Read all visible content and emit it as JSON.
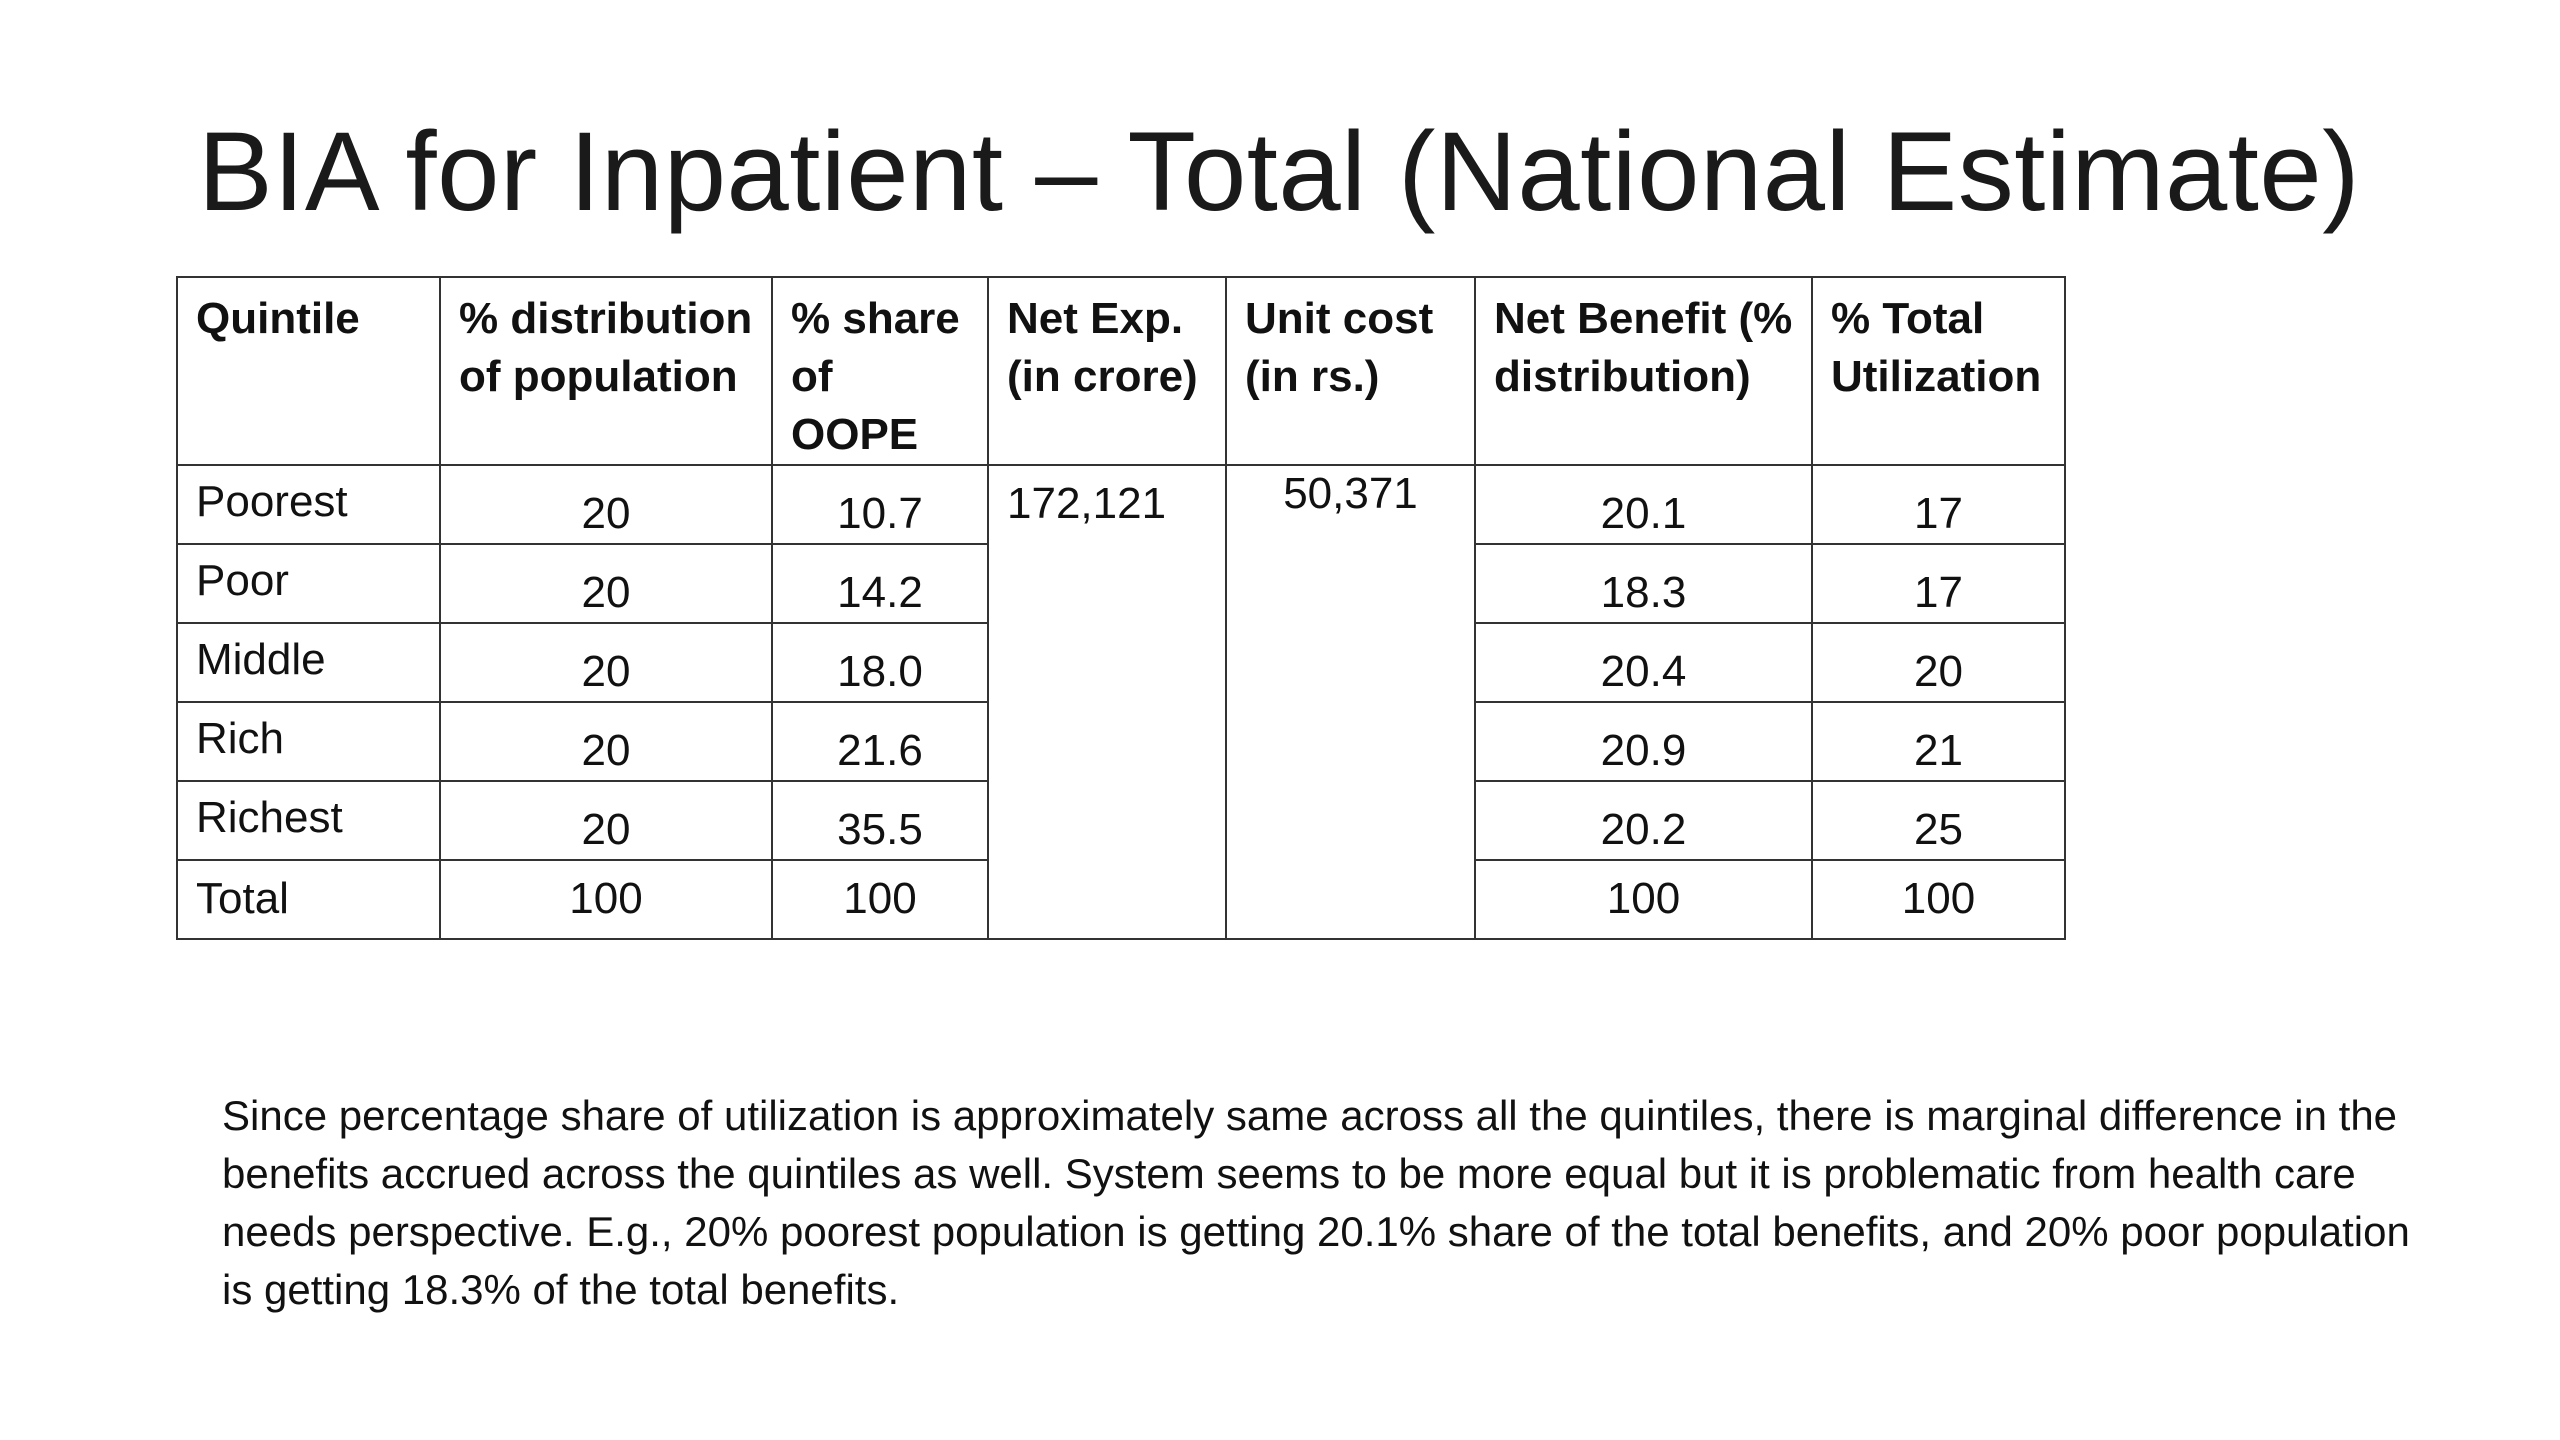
{
  "slide": {
    "title": "BIA for Inpatient – Total (National Estimate)"
  },
  "table": {
    "headers": [
      "Quintile",
      "% distribution of population",
      "% share of OOPE",
      "Net Exp. (in crore)",
      "Unit cost (in rs.)",
      "Net Benefit (% distribution)",
      "% Total Utilization"
    ],
    "net_exp": "172,121",
    "unit_cost": "50,371",
    "rows": [
      {
        "quintile": "Poorest",
        "population_pct": "20",
        "oope_share": "10.7",
        "net_benefit_pct": "20.1",
        "utilization_pct": "17"
      },
      {
        "quintile": "Poor",
        "population_pct": "20",
        "oope_share": "14.2",
        "net_benefit_pct": "18.3",
        "utilization_pct": "17"
      },
      {
        "quintile": "Middle",
        "population_pct": "20",
        "oope_share": "18.0",
        "net_benefit_pct": "20.4",
        "utilization_pct": "20"
      },
      {
        "quintile": "Rich",
        "population_pct": "20",
        "oope_share": "21.6",
        "net_benefit_pct": "20.9",
        "utilization_pct": "21"
      },
      {
        "quintile": "Richest",
        "population_pct": "20",
        "oope_share": "35.5",
        "net_benefit_pct": "20.2",
        "utilization_pct": "25"
      },
      {
        "quintile": "Total",
        "population_pct": "100",
        "oope_share": "100",
        "net_benefit_pct": "100",
        "utilization_pct": "100"
      }
    ]
  },
  "note": "Since percentage share of utilization is approximately same across all the quintiles, there is marginal difference in the benefits accrued across the quintiles as well. System seems to be more equal but it is problematic from health care needs perspective. E.g., 20% poorest population is getting 20.1% share of the total benefits, and 20% poor population is getting 18.3% of the total benefits."
}
